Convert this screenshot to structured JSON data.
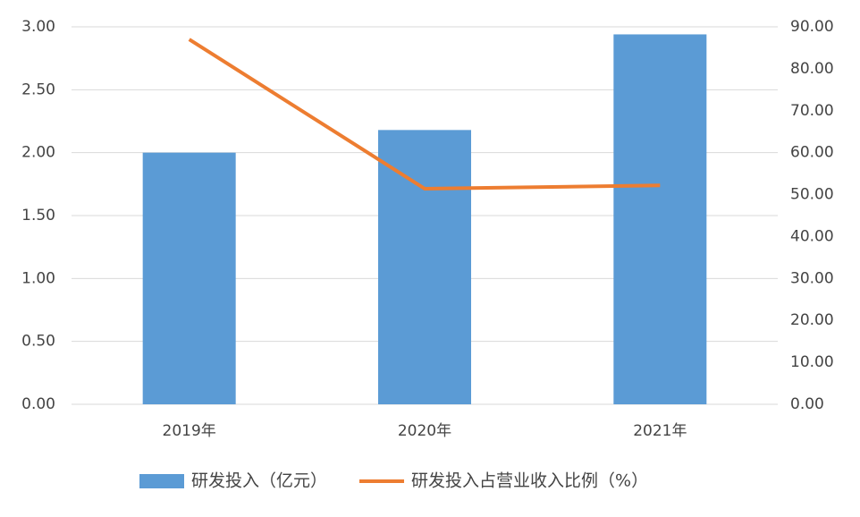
{
  "chart_data": {
    "type": "bar",
    "categories": [
      "2019年",
      "2020年",
      "2021年"
    ],
    "series": [
      {
        "name": "研发投入（亿元）",
        "type": "bar",
        "color": "#5b9bd5",
        "values": [
          2.0,
          2.18,
          2.94
        ]
      },
      {
        "name": "研发投入占营业收入比例（%）",
        "type": "line",
        "axis": "y2",
        "color": "#ed7d31",
        "values": [
          87,
          51.4,
          52.2
        ]
      }
    ],
    "ylim": [
      0,
      3
    ],
    "yticks": [
      {
        "value": 0,
        "label": "0.00"
      },
      {
        "value": 0.5,
        "label": "0.50"
      },
      {
        "value": 1,
        "label": "1.00"
      },
      {
        "value": 1.5,
        "label": "1.50"
      },
      {
        "value": 2,
        "label": "2.00"
      },
      {
        "value": 2.5,
        "label": "2.50"
      },
      {
        "value": 3,
        "label": "3.00"
      }
    ],
    "y2lim": [
      0,
      90
    ],
    "y2ticks": [
      {
        "value": 0,
        "label": "0.00"
      },
      {
        "value": 10,
        "label": "10.00"
      },
      {
        "value": 20,
        "label": "20.00"
      },
      {
        "value": 30,
        "label": "30.00"
      },
      {
        "value": 40,
        "label": "40.00"
      },
      {
        "value": 50,
        "label": "50.00"
      },
      {
        "value": 60,
        "label": "60.00"
      },
      {
        "value": 70,
        "label": "70.00"
      },
      {
        "value": 80,
        "label": "80.00"
      },
      {
        "value": 90,
        "label": "90.00"
      }
    ],
    "grid": true,
    "legend": "bottom"
  }
}
